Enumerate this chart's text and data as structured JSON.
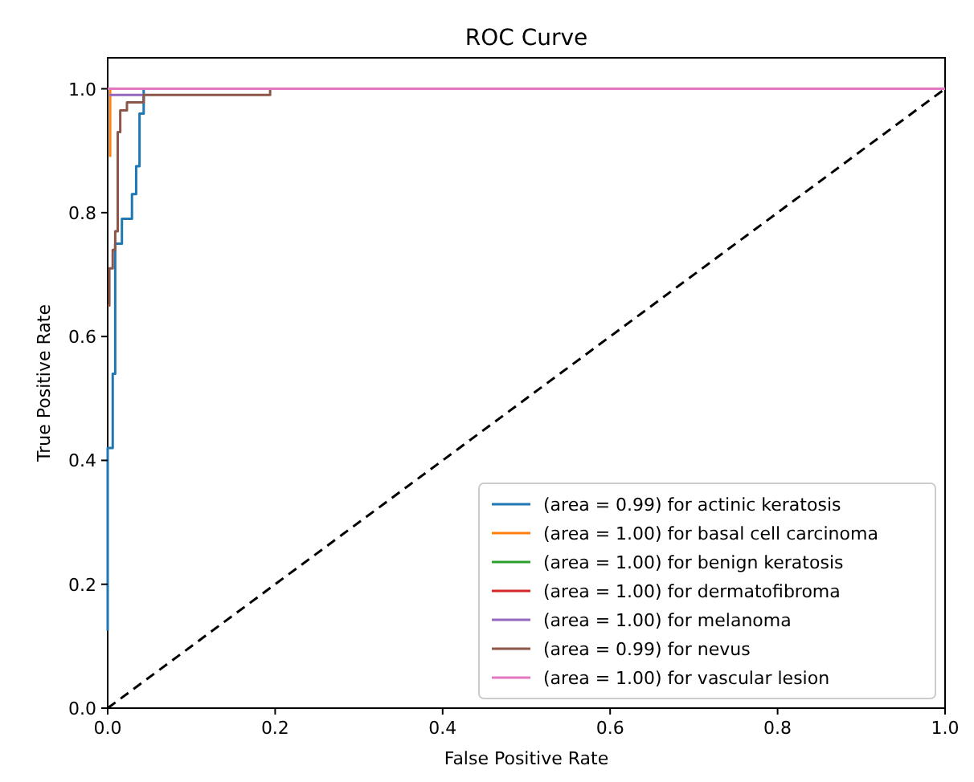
{
  "chart_data": {
    "type": "line",
    "title": "ROC Curve",
    "xlabel": "False Positive Rate",
    "ylabel": "True Positive Rate",
    "xlim": [
      0,
      1
    ],
    "ylim": [
      0,
      1.05
    ],
    "xticks": [
      {
        "value": 0,
        "label": "0.0"
      },
      0.2,
      0.4,
      0.6,
      0.8,
      {
        "value": 1,
        "label": "1.0"
      }
    ],
    "yticks": [
      {
        "value": 0,
        "label": "0.0"
      },
      0.2,
      0.4,
      0.6,
      0.8,
      {
        "value": 1,
        "label": "1.0"
      }
    ],
    "grid": false,
    "legend": "bottom right",
    "marker": "none",
    "series": [
      {
        "name": "(area = 0.99) for actinic keratosis",
        "color": "#1f77b4",
        "x": [
          0,
          0,
          0.006,
          0.006,
          0.009,
          0.009,
          0.017,
          0.017,
          0.029,
          0.029,
          0.034,
          0.034,
          0.038,
          0.038,
          0.043,
          0.043
        ],
        "values": [
          0.125,
          0.42,
          0.42,
          0.54,
          0.54,
          0.75,
          0.75,
          0.79,
          0.79,
          0.83,
          0.83,
          0.875,
          0.875,
          0.96,
          0.96,
          1
        ]
      },
      {
        "name": "(area = 1.00) for basal cell carcinoma",
        "color": "#ff7f0e",
        "x": [
          0.003,
          0.003
        ],
        "values": [
          0.89,
          1
        ]
      },
      {
        "name": "(area = 1.00) for benign keratosis",
        "color": "#2ca02c"
      },
      {
        "name": "(area = 1.00) for dermatofibroma",
        "color": "#d62728"
      },
      {
        "name": "(area = 1.00) for melanoma",
        "color": "#9467bd",
        "x": [
          0.002,
          0.043
        ],
        "values": [
          0.99,
          0.99
        ]
      },
      {
        "name": "(area = 0.99) for nevus",
        "color": "#8c564b",
        "x": [
          0,
          0.002,
          0.002,
          0.006,
          0.006,
          0.009,
          0.009,
          0.012,
          0.012,
          0.015,
          0.015,
          0.023,
          0.023,
          0.043,
          0.043,
          0.194,
          0.194
        ],
        "values": [
          0.65,
          0.65,
          0.71,
          0.71,
          0.74,
          0.74,
          0.77,
          0.77,
          0.93,
          0.93,
          0.965,
          0.965,
          0.978,
          0.978,
          0.99,
          0.99,
          1
        ]
      },
      {
        "name": "(area = 1.00) for vascular lesion",
        "color": "#e377c2",
        "x": [
          0,
          1
        ],
        "values": [
          1,
          1
        ]
      },
      {
        "color": "#000000",
        "line_style": "dashed",
        "x": [
          0,
          1
        ],
        "values": [
          0,
          1
        ]
      }
    ]
  }
}
